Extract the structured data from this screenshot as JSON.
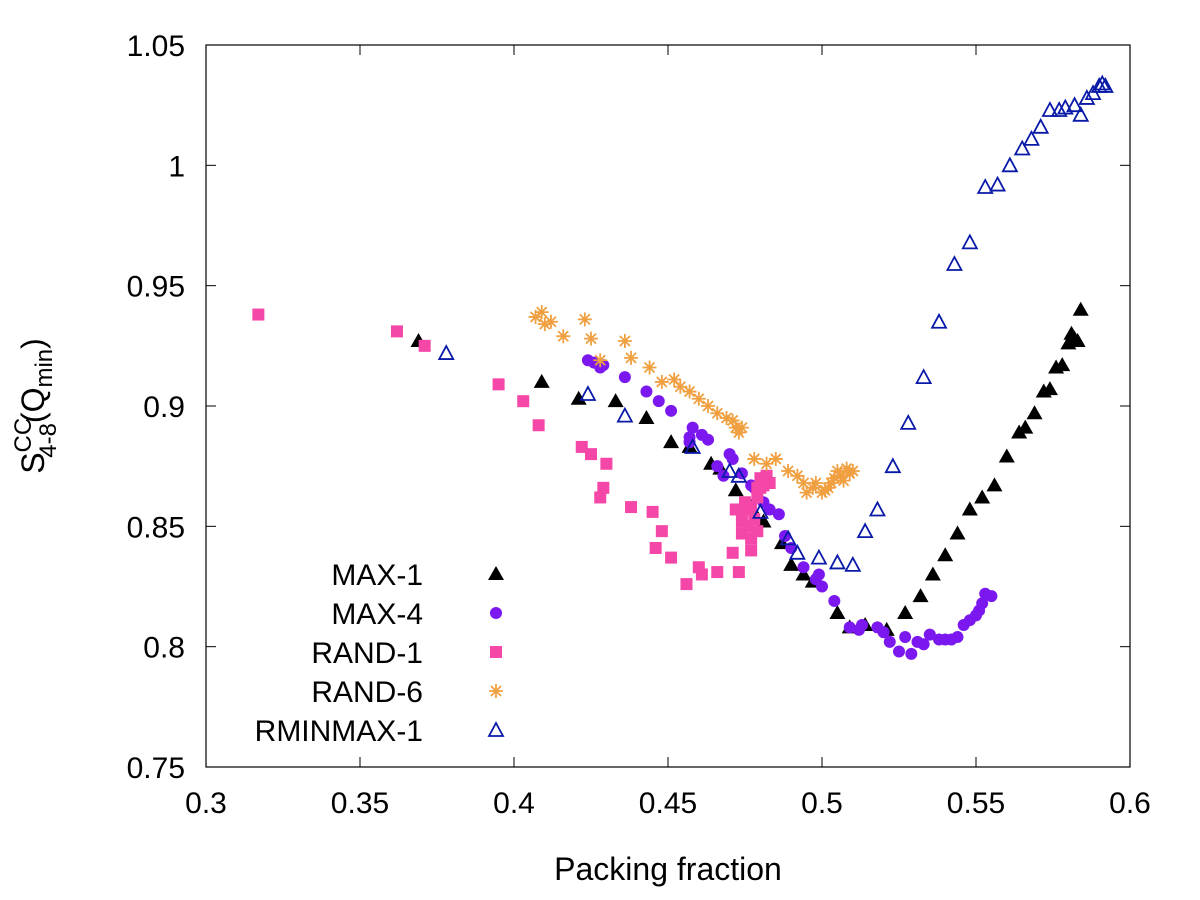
{
  "chart_data": {
    "type": "scatter",
    "xlabel": "Packing fraction",
    "ylabel": {
      "base": "S",
      "sup": "CC",
      "sub": "4-8",
      "arg_open": "(Q",
      "arg_sub": "min",
      "arg_close": ")"
    },
    "xlim": [
      0.3,
      0.6
    ],
    "ylim": [
      0.75,
      1.05
    ],
    "xticks": [
      0.3,
      0.35,
      0.4,
      0.45,
      0.5,
      0.55,
      0.6
    ],
    "xtick_labels": [
      "0.3",
      "0.35",
      "0.4",
      "0.45",
      "0.5",
      "0.55",
      "0.6"
    ],
    "yticks": [
      0.75,
      0.8,
      0.85,
      0.9,
      0.95,
      1.0,
      1.05
    ],
    "ytick_labels": [
      "0.75",
      "0.8",
      "0.85",
      "0.9",
      "0.95",
      "1",
      "1.05"
    ],
    "grid": false,
    "legend_position": "bottom-left",
    "series": [
      {
        "name": "MAX-1",
        "marker": "triangle-filled",
        "color": "#000000",
        "points": [
          [
            0.369,
            0.927
          ],
          [
            0.409,
            0.91
          ],
          [
            0.421,
            0.903
          ],
          [
            0.433,
            0.902
          ],
          [
            0.443,
            0.895
          ],
          [
            0.451,
            0.885
          ],
          [
            0.457,
            0.883
          ],
          [
            0.464,
            0.876
          ],
          [
            0.467,
            0.874
          ],
          [
            0.472,
            0.865
          ],
          [
            0.477,
            0.858
          ],
          [
            0.481,
            0.852
          ],
          [
            0.487,
            0.843
          ],
          [
            0.49,
            0.834
          ],
          [
            0.494,
            0.83
          ],
          [
            0.497,
            0.827
          ],
          [
            0.505,
            0.814
          ],
          [
            0.509,
            0.808
          ],
          [
            0.514,
            0.809
          ],
          [
            0.521,
            0.807
          ],
          [
            0.527,
            0.814
          ],
          [
            0.532,
            0.821
          ],
          [
            0.536,
            0.83
          ],
          [
            0.54,
            0.838
          ],
          [
            0.544,
            0.847
          ],
          [
            0.548,
            0.857
          ],
          [
            0.552,
            0.862
          ],
          [
            0.556,
            0.867
          ],
          [
            0.56,
            0.879
          ],
          [
            0.564,
            0.889
          ],
          [
            0.566,
            0.891
          ],
          [
            0.569,
            0.897
          ],
          [
            0.572,
            0.906
          ],
          [
            0.574,
            0.907
          ],
          [
            0.576,
            0.916
          ],
          [
            0.578,
            0.917
          ],
          [
            0.58,
            0.926
          ],
          [
            0.581,
            0.93
          ],
          [
            0.582,
            0.928
          ],
          [
            0.583,
            0.927
          ],
          [
            0.584,
            0.94
          ]
        ]
      },
      {
        "name": "MAX-4",
        "marker": "circle-filled",
        "color": "#7B18F0",
        "points": [
          [
            0.424,
            0.919
          ],
          [
            0.426,
            0.918
          ],
          [
            0.428,
            0.916
          ],
          [
            0.429,
            0.917
          ],
          [
            0.436,
            0.912
          ],
          [
            0.443,
            0.906
          ],
          [
            0.447,
            0.902
          ],
          [
            0.451,
            0.898
          ],
          [
            0.457,
            0.885
          ],
          [
            0.457,
            0.887
          ],
          [
            0.458,
            0.891
          ],
          [
            0.461,
            0.888
          ],
          [
            0.463,
            0.886
          ],
          [
            0.466,
            0.875
          ],
          [
            0.468,
            0.871
          ],
          [
            0.47,
            0.88
          ],
          [
            0.471,
            0.878
          ],
          [
            0.474,
            0.872
          ],
          [
            0.477,
            0.867
          ],
          [
            0.478,
            0.866
          ],
          [
            0.481,
            0.86
          ],
          [
            0.483,
            0.857
          ],
          [
            0.486,
            0.855
          ],
          [
            0.488,
            0.846
          ],
          [
            0.49,
            0.841
          ],
          [
            0.494,
            0.833
          ],
          [
            0.498,
            0.828
          ],
          [
            0.499,
            0.83
          ],
          [
            0.5,
            0.825
          ],
          [
            0.504,
            0.819
          ],
          [
            0.509,
            0.808
          ],
          [
            0.512,
            0.807
          ],
          [
            0.513,
            0.809
          ],
          [
            0.518,
            0.808
          ],
          [
            0.52,
            0.806
          ],
          [
            0.522,
            0.802
          ],
          [
            0.525,
            0.798
          ],
          [
            0.527,
            0.804
          ],
          [
            0.529,
            0.797
          ],
          [
            0.531,
            0.802
          ],
          [
            0.533,
            0.801
          ],
          [
            0.535,
            0.805
          ],
          [
            0.538,
            0.803
          ],
          [
            0.54,
            0.803
          ],
          [
            0.542,
            0.803
          ],
          [
            0.544,
            0.804
          ],
          [
            0.546,
            0.809
          ],
          [
            0.548,
            0.811
          ],
          [
            0.55,
            0.813
          ],
          [
            0.551,
            0.815
          ],
          [
            0.552,
            0.818
          ],
          [
            0.553,
            0.822
          ],
          [
            0.555,
            0.821
          ]
        ]
      },
      {
        "name": "RAND-1",
        "marker": "square-filled",
        "color": "#F547A8",
        "points": [
          [
            0.317,
            0.938
          ],
          [
            0.362,
            0.931
          ],
          [
            0.371,
            0.925
          ],
          [
            0.395,
            0.909
          ],
          [
            0.403,
            0.902
          ],
          [
            0.408,
            0.892
          ],
          [
            0.422,
            0.883
          ],
          [
            0.425,
            0.88
          ],
          [
            0.428,
            0.862
          ],
          [
            0.429,
            0.866
          ],
          [
            0.43,
            0.876
          ],
          [
            0.438,
            0.858
          ],
          [
            0.445,
            0.856
          ],
          [
            0.446,
            0.841
          ],
          [
            0.448,
            0.848
          ],
          [
            0.451,
            0.837
          ],
          [
            0.456,
            0.826
          ],
          [
            0.46,
            0.833
          ],
          [
            0.461,
            0.83
          ],
          [
            0.466,
            0.831
          ],
          [
            0.471,
            0.839
          ],
          [
            0.472,
            0.857
          ],
          [
            0.473,
            0.831
          ],
          [
            0.474,
            0.847
          ],
          [
            0.474,
            0.852
          ],
          [
            0.475,
            0.86
          ],
          [
            0.475,
            0.857
          ],
          [
            0.476,
            0.85
          ],
          [
            0.477,
            0.84
          ],
          [
            0.477,
            0.858
          ],
          [
            0.477,
            0.845
          ],
          [
            0.478,
            0.853
          ],
          [
            0.479,
            0.862
          ],
          [
            0.479,
            0.866
          ],
          [
            0.479,
            0.848
          ],
          [
            0.48,
            0.87
          ],
          [
            0.48,
            0.866
          ],
          [
            0.481,
            0.867
          ],
          [
            0.481,
            0.869
          ],
          [
            0.482,
            0.871
          ],
          [
            0.483,
            0.868
          ]
        ]
      },
      {
        "name": "RAND-6",
        "marker": "star",
        "color": "#F0A040",
        "points": [
          [
            0.407,
            0.937
          ],
          [
            0.409,
            0.939
          ],
          [
            0.41,
            0.934
          ],
          [
            0.412,
            0.935
          ],
          [
            0.416,
            0.929
          ],
          [
            0.423,
            0.936
          ],
          [
            0.425,
            0.928
          ],
          [
            0.428,
            0.919
          ],
          [
            0.436,
            0.927
          ],
          [
            0.438,
            0.92
          ],
          [
            0.444,
            0.916
          ],
          [
            0.448,
            0.91
          ],
          [
            0.452,
            0.911
          ],
          [
            0.454,
            0.908
          ],
          [
            0.457,
            0.906
          ],
          [
            0.46,
            0.903
          ],
          [
            0.463,
            0.9
          ],
          [
            0.466,
            0.897
          ],
          [
            0.469,
            0.895
          ],
          [
            0.471,
            0.894
          ],
          [
            0.472,
            0.891
          ],
          [
            0.473,
            0.889
          ],
          [
            0.474,
            0.891
          ],
          [
            0.478,
            0.878
          ],
          [
            0.482,
            0.876
          ],
          [
            0.485,
            0.878
          ],
          [
            0.489,
            0.873
          ],
          [
            0.492,
            0.871
          ],
          [
            0.494,
            0.868
          ],
          [
            0.495,
            0.864
          ],
          [
            0.497,
            0.866
          ],
          [
            0.498,
            0.868
          ],
          [
            0.5,
            0.864
          ],
          [
            0.501,
            0.865
          ],
          [
            0.502,
            0.866
          ],
          [
            0.503,
            0.868
          ],
          [
            0.504,
            0.87
          ],
          [
            0.505,
            0.873
          ],
          [
            0.506,
            0.871
          ],
          [
            0.507,
            0.869
          ],
          [
            0.508,
            0.874
          ],
          [
            0.509,
            0.872
          ],
          [
            0.51,
            0.873
          ]
        ]
      },
      {
        "name": "RMINMAX-1",
        "marker": "triangle-open",
        "color": "#0A1AA8",
        "points": [
          [
            0.378,
            0.922
          ],
          [
            0.424,
            0.905
          ],
          [
            0.436,
            0.896
          ],
          [
            0.458,
            0.883
          ],
          [
            0.47,
            0.873
          ],
          [
            0.473,
            0.871
          ],
          [
            0.48,
            0.856
          ],
          [
            0.489,
            0.845
          ],
          [
            0.492,
            0.839
          ],
          [
            0.499,
            0.837
          ],
          [
            0.505,
            0.835
          ],
          [
            0.51,
            0.834
          ],
          [
            0.514,
            0.848
          ],
          [
            0.518,
            0.857
          ],
          [
            0.523,
            0.875
          ],
          [
            0.528,
            0.893
          ],
          [
            0.533,
            0.912
          ],
          [
            0.538,
            0.935
          ],
          [
            0.543,
            0.959
          ],
          [
            0.548,
            0.968
          ],
          [
            0.553,
            0.991
          ],
          [
            0.557,
            0.992
          ],
          [
            0.561,
            1.0
          ],
          [
            0.565,
            1.007
          ],
          [
            0.568,
            1.011
          ],
          [
            0.571,
            1.016
          ],
          [
            0.574,
            1.023
          ],
          [
            0.577,
            1.023
          ],
          [
            0.579,
            1.024
          ],
          [
            0.582,
            1.025
          ],
          [
            0.584,
            1.021
          ],
          [
            0.586,
            1.028
          ],
          [
            0.588,
            1.03
          ],
          [
            0.59,
            1.033
          ],
          [
            0.591,
            1.034
          ],
          [
            0.592,
            1.033
          ]
        ]
      }
    ]
  }
}
